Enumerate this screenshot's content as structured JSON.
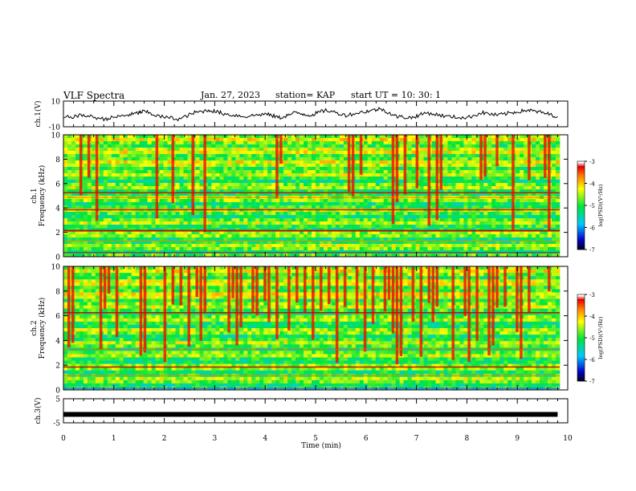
{
  "header": {
    "title": "VLF Spectra",
    "date": "Jan. 27, 2023",
    "station": "station= KAP",
    "start": "start  UT =   10: 30: 1"
  },
  "chart_data": [
    {
      "type": "line",
      "panel": "ch1-waveform",
      "ylabel": "ch.1(V)",
      "ylim": [
        -10,
        10
      ],
      "yticks": [
        -10,
        10
      ],
      "xlim": [
        0,
        10
      ],
      "x": [
        0,
        0.4,
        0.8,
        1.1,
        1.4,
        1.6,
        1.9,
        2.3,
        2.6,
        2.9,
        3.2,
        3.6,
        4.0,
        4.3,
        4.6,
        4.9,
        5.2,
        5.6,
        6.0,
        6.3,
        6.6,
        6.9,
        7.2,
        7.6,
        8.0,
        8.3,
        8.6,
        8.9,
        9.2,
        9.5,
        9.8
      ],
      "values": [
        -3,
        -1,
        -4,
        -2,
        0,
        2,
        -2,
        -4,
        1,
        3,
        0,
        -2,
        0,
        -3,
        1,
        -1,
        3,
        -1,
        2,
        4,
        -2,
        -3,
        1,
        -2,
        -3,
        1,
        -1,
        1,
        3,
        1,
        -2
      ]
    },
    {
      "type": "heatmap",
      "panel": "ch1-spectrogram",
      "ylabel": "ch.1\nFrequency (kHz)",
      "ylim": [
        0,
        10
      ],
      "yticks": [
        0,
        2,
        4,
        6,
        8,
        10
      ],
      "xlim": [
        0,
        10
      ],
      "colorbar": {
        "label": "log(PSD)(V²/Hz)",
        "range": [
          -7,
          -3
        ],
        "ticks": [
          -3,
          -4,
          -5,
          -6,
          -7
        ]
      }
    },
    {
      "type": "heatmap",
      "panel": "ch2-spectrogram",
      "ylabel": "ch.2\nFrequency (kHz)",
      "ylim": [
        0,
        10
      ],
      "yticks": [
        0,
        2,
        4,
        6,
        8,
        10
      ],
      "xlim": [
        0,
        10
      ],
      "colorbar": {
        "label": "log(PSD)(V²/Hz)",
        "range": [
          -7,
          -3
        ],
        "ticks": [
          -3,
          -4,
          -5,
          -6,
          -7
        ]
      }
    },
    {
      "type": "line",
      "panel": "ch3-waveform",
      "ylabel": "ch.3(V)",
      "ylim": [
        -5,
        5
      ],
      "yticks": [
        -5,
        5
      ],
      "xlim": [
        0,
        10
      ],
      "x": [
        0,
        9.8
      ],
      "values": [
        -1.5,
        -1.5
      ],
      "xlabel": "Time (min)",
      "xticks": [
        0,
        1,
        2,
        3,
        4,
        5,
        6,
        7,
        8,
        9,
        10
      ]
    }
  ]
}
